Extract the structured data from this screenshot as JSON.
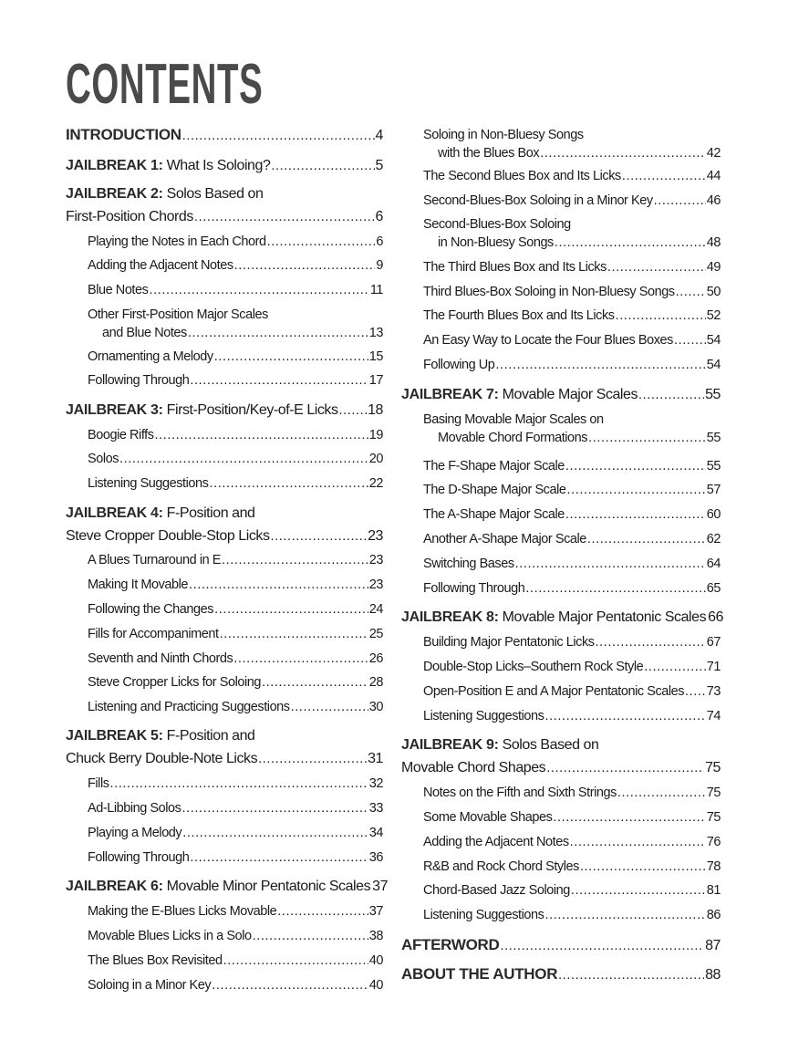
{
  "title": "CONTENTS",
  "left_column": [
    {
      "level": "chapter",
      "prefix": "INTRODUCTION",
      "title": "",
      "page": "4"
    },
    {
      "level": "chapter",
      "prefix": "JAILBREAK 1:",
      "title": "What Is Soloing?",
      "page": "5"
    },
    {
      "level": "chapter",
      "prefix": "JAILBREAK 2:",
      "title": "Solos Based on",
      "title2": "First-Position Chords",
      "page": "6"
    },
    {
      "level": "section",
      "title": "Playing the Notes in Each Chord",
      "page": "6"
    },
    {
      "level": "section",
      "title": "Adding the Adjacent Notes",
      "page": "9"
    },
    {
      "level": "section",
      "title": "Blue Notes",
      "page": "11"
    },
    {
      "level": "section",
      "title": "Other First-Position Major Scales",
      "title2": "and Blue Notes",
      "page": "13"
    },
    {
      "level": "section",
      "title": "Ornamenting a Melody",
      "page": "15"
    },
    {
      "level": "section",
      "title": "Following Through",
      "page": "17"
    },
    {
      "level": "chapter",
      "prefix": "JAILBREAK 3:",
      "title": "First-Position/Key-of-E Licks",
      "page": "18"
    },
    {
      "level": "section",
      "title": "Boogie Riffs",
      "page": "19"
    },
    {
      "level": "section",
      "title": "Solos",
      "page": "20"
    },
    {
      "level": "section",
      "title": "Listening Suggestions",
      "page": "22"
    },
    {
      "level": "chapter",
      "prefix": "JAILBREAK 4:",
      "title": "F-Position and",
      "title2": "Steve Cropper Double-Stop Licks",
      "page": "23"
    },
    {
      "level": "section",
      "title": "A Blues Turnaround in E",
      "page": "23"
    },
    {
      "level": "section",
      "title": "Making It Movable",
      "page": "23"
    },
    {
      "level": "section",
      "title": "Following the Changes",
      "page": "24"
    },
    {
      "level": "section",
      "title": "Fills for Accompaniment",
      "page": "25"
    },
    {
      "level": "section",
      "title": "Seventh and Ninth Chords",
      "page": "26"
    },
    {
      "level": "section",
      "title": "Steve Cropper Licks for Soloing",
      "page": "28"
    },
    {
      "level": "section",
      "title": "Listening and Practicing Suggestions",
      "page": "30"
    },
    {
      "level": "chapter",
      "prefix": "JAILBREAK 5:",
      "title": "F-Position and",
      "title2": "Chuck Berry Double-Note Licks",
      "page": "31"
    },
    {
      "level": "section",
      "title": "Fills",
      "page": "32"
    },
    {
      "level": "section",
      "title": "Ad-Libbing Solos",
      "page": "33"
    },
    {
      "level": "section",
      "title": "Playing a Melody",
      "page": "34"
    },
    {
      "level": "section",
      "title": "Following Through",
      "page": "36"
    },
    {
      "level": "chapter",
      "prefix": "JAILBREAK 6:",
      "title": "Movable Minor Pentatonic Scales",
      "page": "37"
    },
    {
      "level": "section",
      "title": "Making the E-Blues Licks Movable",
      "page": "37"
    },
    {
      "level": "section",
      "title": "Movable Blues Licks in a Solo",
      "page": "38"
    },
    {
      "level": "section",
      "title": "The Blues Box Revisited",
      "page": "40"
    },
    {
      "level": "section",
      "title": "Soloing in a Minor Key",
      "page": "40"
    }
  ],
  "right_column": [
    {
      "level": "section",
      "title": "Soloing in Non-Bluesy Songs",
      "title2": "with the Blues Box",
      "page": "42"
    },
    {
      "level": "section",
      "title": "The Second Blues Box and Its Licks",
      "page": "44"
    },
    {
      "level": "section",
      "title": "Second-Blues-Box Soloing in a Minor Key",
      "page": "46"
    },
    {
      "level": "section",
      "title": "Second-Blues-Box Soloing",
      "title2": "in Non-Bluesy Songs",
      "page": "48"
    },
    {
      "level": "section",
      "title": "The Third Blues Box and Its Licks",
      "page": "49"
    },
    {
      "level": "section",
      "title": "Third Blues-Box Soloing in Non-Bluesy Songs",
      "page": "50"
    },
    {
      "level": "section",
      "title": "The Fourth Blues Box and Its Licks",
      "page": "52"
    },
    {
      "level": "section",
      "title": "An Easy Way to Locate the Four Blues Boxes",
      "page": "54"
    },
    {
      "level": "section",
      "title": "Following Up",
      "page": "54"
    },
    {
      "level": "chapter",
      "prefix": "JAILBREAK 7:",
      "title": "Movable Major Scales",
      "page": "55"
    },
    {
      "level": "section",
      "title": "Basing Movable Major Scales on",
      "title2": "Movable Chord Formations",
      "page": "55"
    },
    {
      "level": "section",
      "title": "The F-Shape Major Scale",
      "page": "55"
    },
    {
      "level": "section",
      "title": "The D-Shape Major Scale",
      "page": "57"
    },
    {
      "level": "section",
      "title": "The A-Shape Major Scale",
      "page": "60"
    },
    {
      "level": "section",
      "title": "Another A-Shape Major Scale",
      "page": "62"
    },
    {
      "level": "section",
      "title": "Switching Bases",
      "page": "64"
    },
    {
      "level": "section",
      "title": "Following Through",
      "page": "65"
    },
    {
      "level": "chapter",
      "prefix": "JAILBREAK 8:",
      "title": "Movable Major Pentatonic Scales",
      "page": "66"
    },
    {
      "level": "section",
      "title": "Building Major Pentatonic Licks",
      "page": "67"
    },
    {
      "level": "section",
      "title": "Double-Stop Licks–Southern Rock Style",
      "page": "71"
    },
    {
      "level": "section",
      "title": "Open-Position E and A Major Pentatonic Scales",
      "page": "73"
    },
    {
      "level": "section",
      "title": "Listening Suggestions",
      "page": "74"
    },
    {
      "level": "chapter",
      "prefix": "JAILBREAK 9:",
      "title": "Solos Based on",
      "title2": "Movable Chord Shapes",
      "page": "75"
    },
    {
      "level": "section",
      "title": "Notes on the Fifth and Sixth Strings",
      "page": "75"
    },
    {
      "level": "section",
      "title": "Some Movable Shapes",
      "page": "75"
    },
    {
      "level": "section",
      "title": "Adding the Adjacent Notes",
      "page": "76"
    },
    {
      "level": "section",
      "title": "R&B and Rock Chord Styles",
      "page": "78"
    },
    {
      "level": "section",
      "title": "Chord-Based Jazz Soloing",
      "page": "81"
    },
    {
      "level": "section",
      "title": "Listening Suggestions",
      "page": "86"
    },
    {
      "level": "chapter",
      "prefix": "AFTERWORD",
      "title": "",
      "page": "87"
    },
    {
      "level": "chapter",
      "prefix": "ABOUT THE AUTHOR",
      "title": "",
      "page": "88"
    }
  ]
}
